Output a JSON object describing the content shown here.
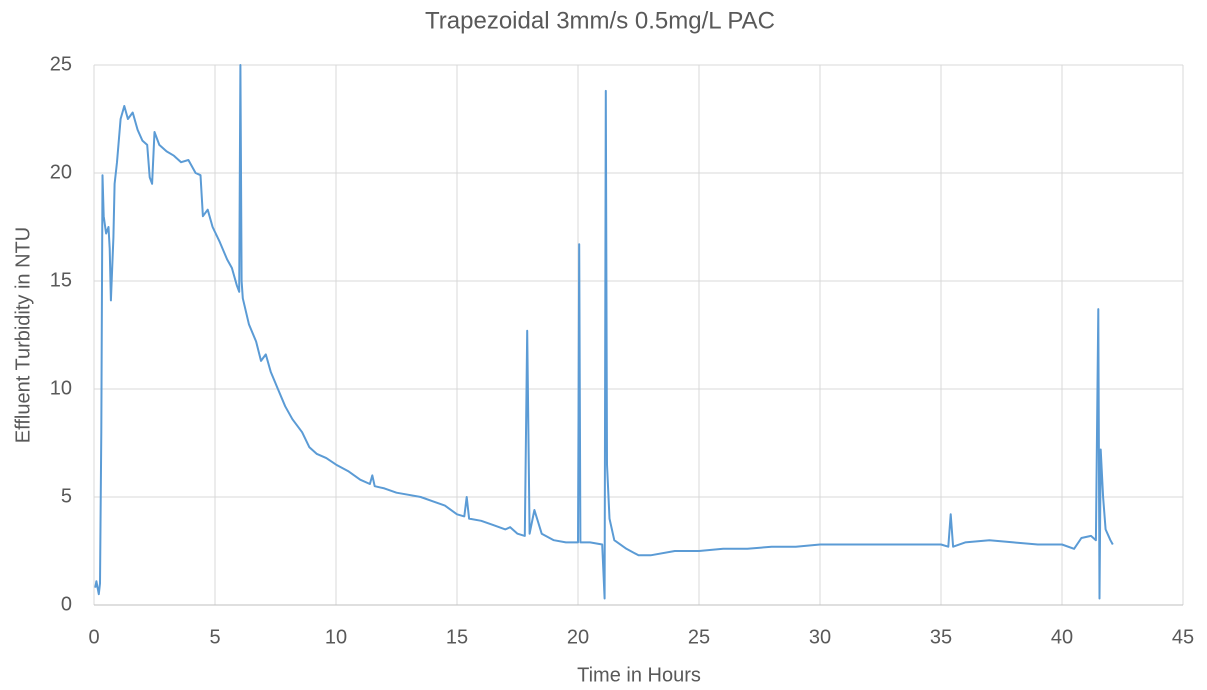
{
  "chart_data": {
    "type": "line",
    "title": "Trapezoidal 3mm/s 0.5mg/L PAC",
    "x_label": "Time in Hours",
    "y_label": "Effluent Turbidity in NTU",
    "color": "#5b9bd5",
    "grid": true,
    "xlim": [
      0,
      45
    ],
    "xticks": [
      0,
      5,
      10,
      15,
      20,
      25,
      30,
      35,
      40,
      45
    ],
    "ylim": [
      0,
      25
    ],
    "yticks": [
      0,
      5,
      10,
      15,
      20,
      25
    ],
    "x": [
      0.05,
      0.1,
      0.2,
      0.25,
      0.3,
      0.35,
      0.4,
      0.5,
      0.6,
      0.65,
      0.7,
      0.8,
      0.85,
      0.95,
      1.1,
      1.25,
      1.4,
      1.6,
      1.8,
      2.0,
      2.2,
      2.3,
      2.4,
      2.5,
      2.7,
      3.0,
      3.3,
      3.6,
      3.9,
      4.2,
      4.4,
      4.5,
      4.7,
      4.9,
      5.2,
      5.5,
      5.7,
      5.9,
      6.0,
      6.05,
      6.1,
      6.15,
      6.4,
      6.7,
      6.9,
      7.1,
      7.3,
      7.6,
      7.9,
      8.2,
      8.6,
      8.9,
      9.2,
      9.6,
      10,
      10.5,
      11,
      11.4,
      11.5,
      11.6,
      12,
      12.5,
      13,
      13.5,
      14,
      14.5,
      15,
      15.3,
      15.4,
      15.5,
      16,
      16.5,
      17,
      17.2,
      17.5,
      17.8,
      17.9,
      18.0,
      18.2,
      18.5,
      19,
      19.5,
      20,
      20.05,
      20.1,
      20.5,
      21,
      21.1,
      21.15,
      21.2,
      21.3,
      21.5,
      22,
      22.5,
      23,
      24,
      25,
      26,
      27,
      28,
      29,
      30,
      31,
      32,
      33,
      34,
      35,
      35.3,
      35.4,
      35.5,
      36,
      37,
      38,
      39,
      40,
      40.5,
      40.8,
      41.2,
      41.4,
      41.5,
      41.55,
      41.6,
      41.7,
      41.8,
      42,
      42.1
    ],
    "values": [
      0.8,
      1.1,
      0.5,
      1.0,
      8,
      19.9,
      18,
      17.2,
      17.5,
      16.5,
      14.1,
      17,
      19.5,
      20.5,
      22.5,
      23.1,
      22.5,
      22.8,
      22.0,
      21.5,
      21.3,
      19.8,
      19.5,
      21.9,
      21.3,
      21.0,
      20.8,
      20.5,
      20.6,
      20.0,
      19.9,
      18.0,
      18.3,
      17.5,
      16.8,
      16.0,
      15.6,
      14.8,
      14.5,
      25,
      15,
      14.2,
      13.0,
      12.2,
      11.3,
      11.6,
      10.8,
      10.0,
      9.2,
      8.6,
      8.0,
      7.3,
      7.0,
      6.8,
      6.5,
      6.2,
      5.8,
      5.6,
      6.0,
      5.5,
      5.4,
      5.2,
      5.1,
      5.0,
      4.8,
      4.6,
      4.2,
      4.1,
      5.0,
      4.0,
      3.9,
      3.7,
      3.5,
      3.6,
      3.3,
      3.2,
      12.7,
      3.3,
      4.4,
      3.3,
      3.0,
      2.9,
      2.9,
      16.7,
      2.9,
      2.9,
      2.8,
      0.3,
      23.8,
      6.5,
      4.0,
      3.0,
      2.6,
      2.3,
      2.3,
      2.5,
      2.5,
      2.6,
      2.6,
      2.7,
      2.7,
      2.8,
      2.8,
      2.8,
      2.8,
      2.8,
      2.8,
      2.7,
      4.2,
      2.7,
      2.9,
      3.0,
      2.9,
      2.8,
      2.8,
      2.6,
      3.1,
      3.2,
      3.0,
      13.7,
      0.3,
      7.2,
      5.0,
      3.5,
      3.0,
      2.8
    ]
  }
}
